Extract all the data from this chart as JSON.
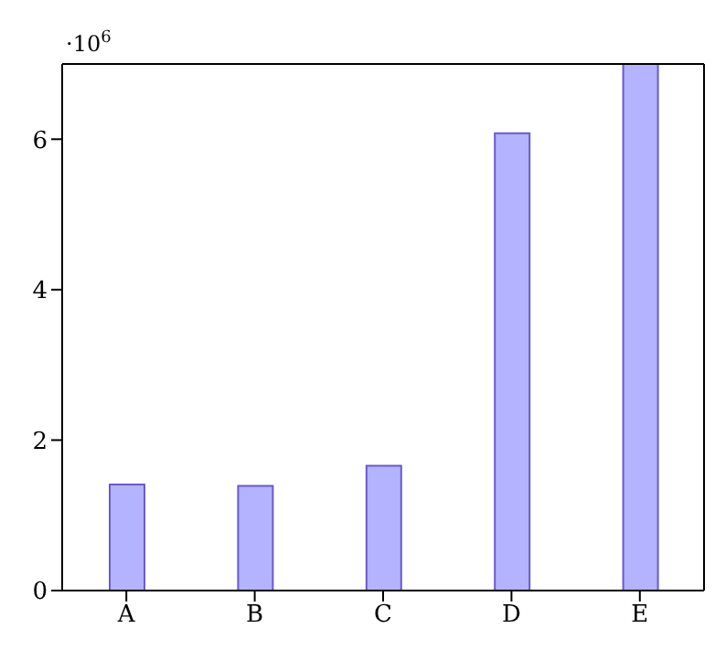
{
  "chart_data": {
    "type": "bar",
    "categories": [
      "A",
      "B",
      "C",
      "D",
      "E"
    ],
    "values": [
      1.41,
      1.39,
      1.66,
      6.08,
      7.0
    ],
    "color": "#b3b3ff",
    "ylim": [
      0,
      7
    ],
    "yticks": [
      0,
      2,
      4,
      6
    ],
    "annotations": [
      "·10$^{6}$"
    ]
  }
}
